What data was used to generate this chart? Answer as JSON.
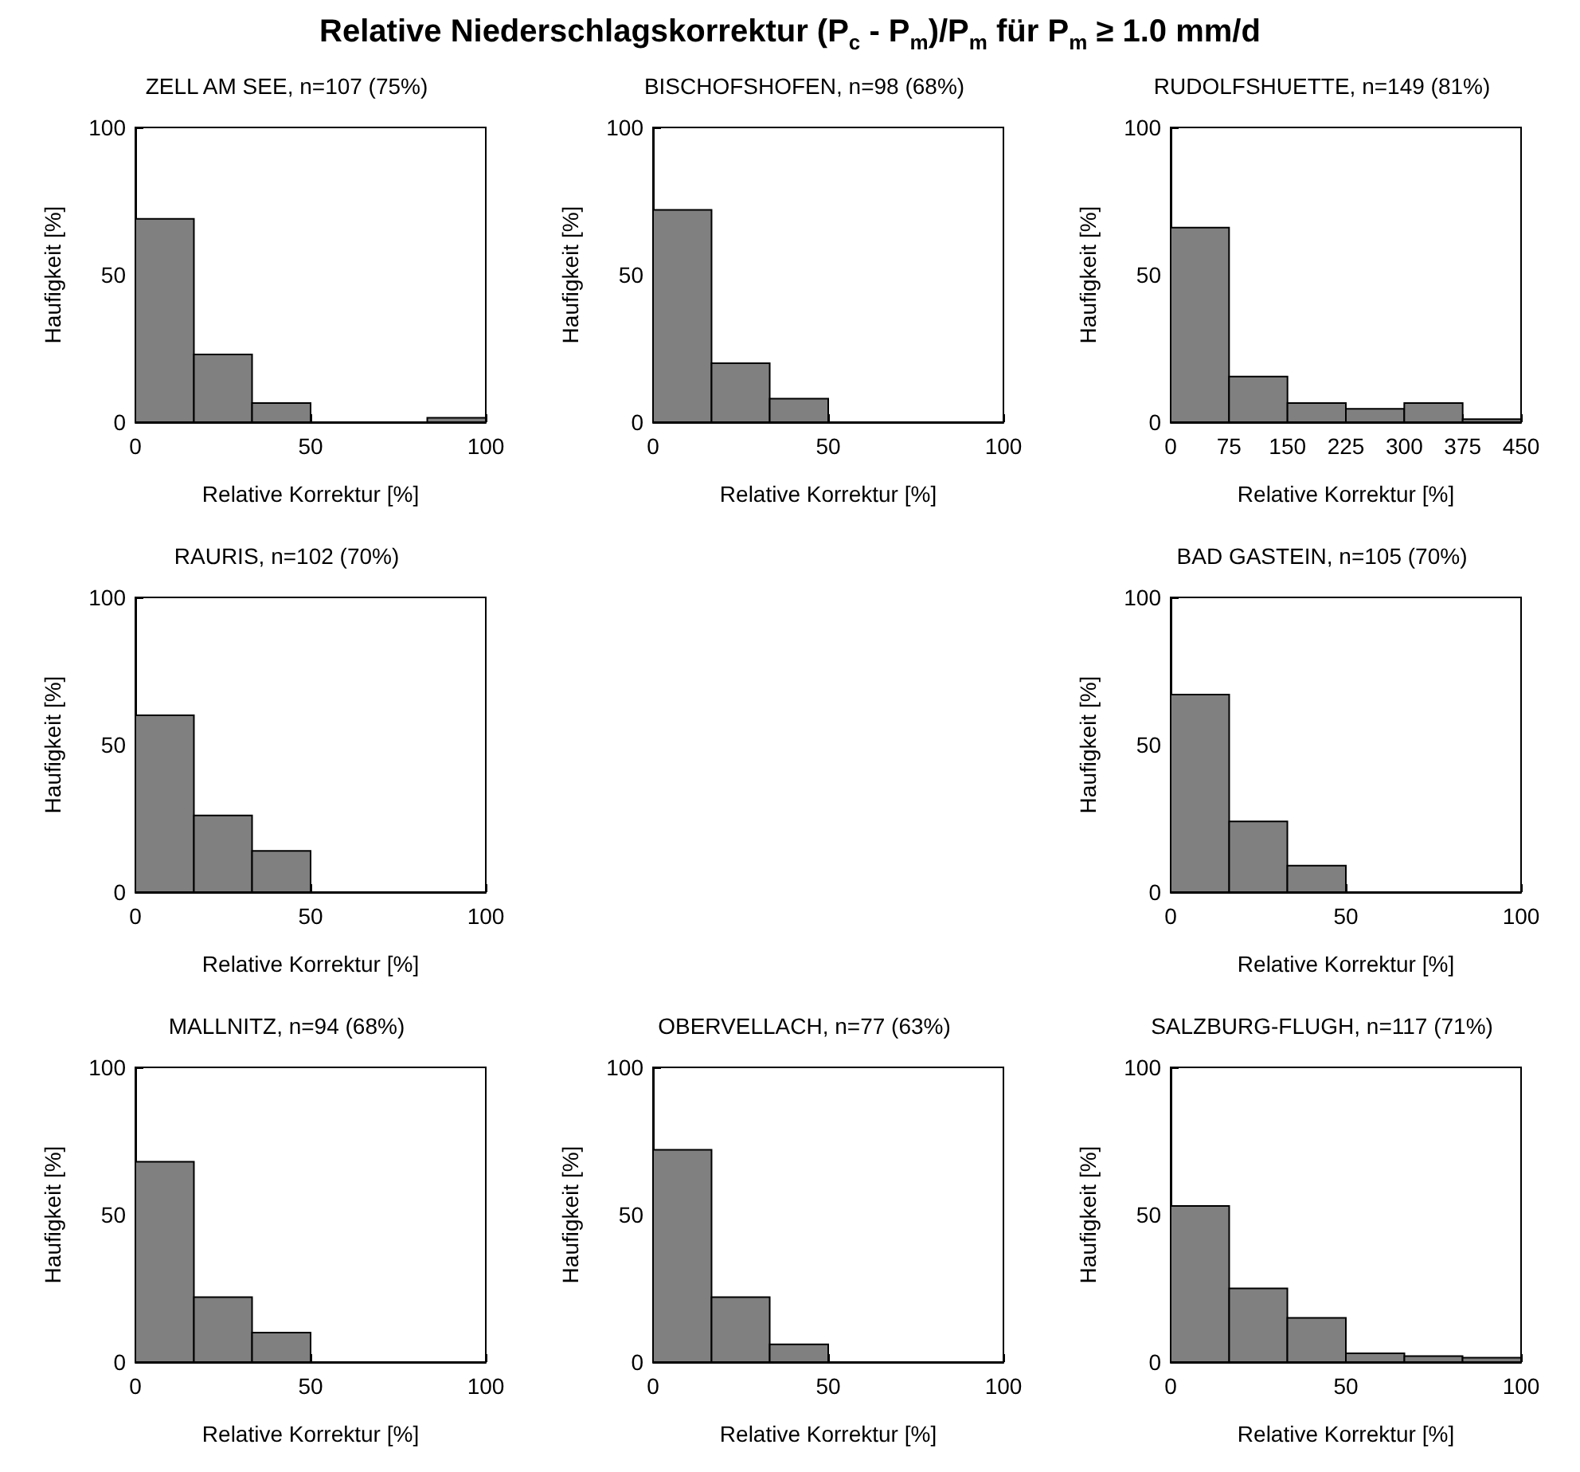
{
  "chart_data": [
    {
      "type": "other",
      "title": "Relative Niederschlagskorrektur (P$_{c}$ - P$_{m}$)/P$_{m}$ für P$_{m}$ ≥  1.0 mm/d"
    },
    {
      "type": "histogram",
      "title": "ZELL AM SEE, n=107 (75%)",
      "xlabel": "Relative Korrektur [%]",
      "ylabel": "Haufigkeit [%]",
      "bins": [
        0,
        16.7,
        33.3,
        50,
        66.7,
        83.3,
        100
      ],
      "values": [
        69,
        23,
        6.5,
        0,
        0,
        1.5
      ],
      "color": "#808080",
      "xlim": [
        0,
        100
      ],
      "xticks": [
        0,
        50,
        100
      ],
      "ylim": [
        0,
        100
      ],
      "yticks": [
        0,
        50,
        100
      ]
    },
    {
      "type": "histogram",
      "title": "BISCHOFSHOFEN, n=98 (68%)",
      "xlabel": "Relative Korrektur [%]",
      "ylabel": "Haufigkeit [%]",
      "bins": [
        0,
        16.7,
        33.3,
        50,
        66.7,
        83.3,
        100
      ],
      "values": [
        72,
        20,
        8,
        0,
        0,
        0
      ],
      "color": "#808080",
      "xlim": [
        0,
        100
      ],
      "xticks": [
        0,
        50,
        100
      ],
      "ylim": [
        0,
        100
      ],
      "yticks": [
        0,
        50,
        100
      ]
    },
    {
      "type": "histogram",
      "title": "RUDOLFSHUETTE, n=149 (81%)",
      "xlabel": "Relative Korrektur [%]",
      "ylabel": "Haufigkeit [%]",
      "bins": [
        0,
        75,
        150,
        225,
        300,
        375,
        450
      ],
      "values": [
        66,
        15.5,
        6.5,
        4.5,
        6.5,
        1
      ],
      "color": "#808080",
      "xlim": [
        0,
        450
      ],
      "xticks": [
        0,
        75,
        150,
        225,
        300,
        375,
        450
      ],
      "ylim": [
        0,
        100
      ],
      "yticks": [
        0,
        50,
        100
      ]
    },
    {
      "type": "histogram",
      "title": "RAURIS, n=102 (70%)",
      "xlabel": "Relative Korrektur [%]",
      "ylabel": "Haufigkeit [%]",
      "bins": [
        0,
        16.7,
        33.3,
        50,
        66.7,
        83.3,
        100
      ],
      "values": [
        60,
        26,
        14,
        0,
        0,
        0
      ],
      "color": "#808080",
      "xlim": [
        0,
        100
      ],
      "xticks": [
        0,
        50,
        100
      ],
      "ylim": [
        0,
        100
      ],
      "yticks": [
        0,
        50,
        100
      ]
    },
    {
      "type": "histogram",
      "title": "BAD GASTEIN, n=105 (70%)",
      "xlabel": "Relative Korrektur [%]",
      "ylabel": "Haufigkeit [%]",
      "bins": [
        0,
        16.7,
        33.3,
        50,
        66.7,
        83.3,
        100
      ],
      "values": [
        67,
        24,
        9,
        0,
        0,
        0
      ],
      "color": "#808080",
      "xlim": [
        0,
        100
      ],
      "xticks": [
        0,
        50,
        100
      ],
      "ylim": [
        0,
        100
      ],
      "yticks": [
        0,
        50,
        100
      ]
    },
    {
      "type": "histogram",
      "title": "MALLNITZ, n=94 (68%)",
      "xlabel": "Relative Korrektur [%]",
      "ylabel": "Haufigkeit [%]",
      "bins": [
        0,
        16.7,
        33.3,
        50,
        66.7,
        83.3,
        100
      ],
      "values": [
        68,
        22,
        10,
        0,
        0,
        0
      ],
      "color": "#808080",
      "xlim": [
        0,
        100
      ],
      "xticks": [
        0,
        50,
        100
      ],
      "ylim": [
        0,
        100
      ],
      "yticks": [
        0,
        50,
        100
      ]
    },
    {
      "type": "histogram",
      "title": "OBERVELLACH, n=77 (63%)",
      "xlabel": "Relative Korrektur [%]",
      "ylabel": "Haufigkeit [%]",
      "bins": [
        0,
        16.7,
        33.3,
        50,
        66.7,
        83.3,
        100
      ],
      "values": [
        72,
        22,
        6,
        0,
        0,
        0
      ],
      "color": "#808080",
      "xlim": [
        0,
        100
      ],
      "xticks": [
        0,
        50,
        100
      ],
      "ylim": [
        0,
        100
      ],
      "yticks": [
        0,
        50,
        100
      ]
    },
    {
      "type": "histogram",
      "title": "SALZBURG-FLUGH, n=117 (71%)",
      "xlabel": "Relative Korrektur [%]",
      "ylabel": "Haufigkeit [%]",
      "bins": [
        0,
        16.7,
        33.3,
        50,
        66.7,
        83.3,
        100
      ],
      "values": [
        53,
        25,
        15,
        3,
        2,
        1.5
      ],
      "color": "#808080",
      "xlim": [
        0,
        100
      ],
      "xticks": [
        0,
        50,
        100
      ],
      "ylim": [
        0,
        100
      ],
      "yticks": [
        0,
        50,
        100
      ]
    }
  ]
}
